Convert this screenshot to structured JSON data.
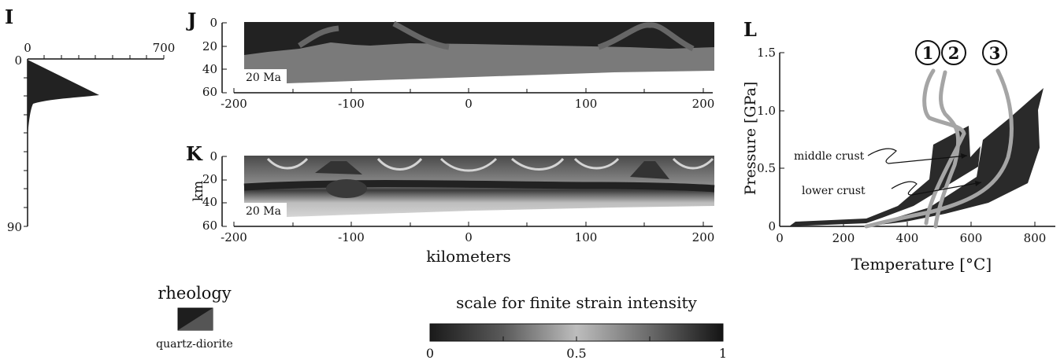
{
  "panels": {
    "I": {
      "letter": "I",
      "top_ticks": [
        "0",
        "700"
      ],
      "left_ticks": [
        "0",
        "90"
      ]
    },
    "J": {
      "letter": "J",
      "age": "20 Ma",
      "y_ticks": [
        "0",
        "20",
        "40",
        "60"
      ],
      "x_ticks": [
        "-200",
        "-100",
        "0",
        "100",
        "200"
      ]
    },
    "K": {
      "letter": "K",
      "age": "20 Ma",
      "ylabel": "km",
      "xlabel": "kilometers",
      "y_ticks": [
        "0",
        "20",
        "40",
        "60"
      ],
      "x_ticks": [
        "-200",
        "-100",
        "0",
        "100",
        "200"
      ]
    },
    "L": {
      "letter": "L",
      "xlabel": "Temperature [°C]",
      "ylabel": "Pressure [GPa]",
      "x_ticks": [
        "0",
        "200",
        "400",
        "600",
        "800"
      ],
      "y_ticks": [
        "0",
        "0.5",
        "1.0",
        "1.5"
      ],
      "middle_crust_label": "middle crust",
      "lower_crust_label": "lower crust",
      "path_labels": [
        "1",
        "2",
        "3"
      ]
    }
  },
  "legend": {
    "rheology_title": "rheology",
    "rheology_item": "quartz-diorite",
    "strain_title": "scale for finite strain intensity",
    "strain_ticks": [
      "0",
      "0.5",
      "1"
    ]
  },
  "colors": {
    "dark_fill": "#222222",
    "mid_gray": "#777777",
    "path_gray": "#a5a5a5"
  }
}
